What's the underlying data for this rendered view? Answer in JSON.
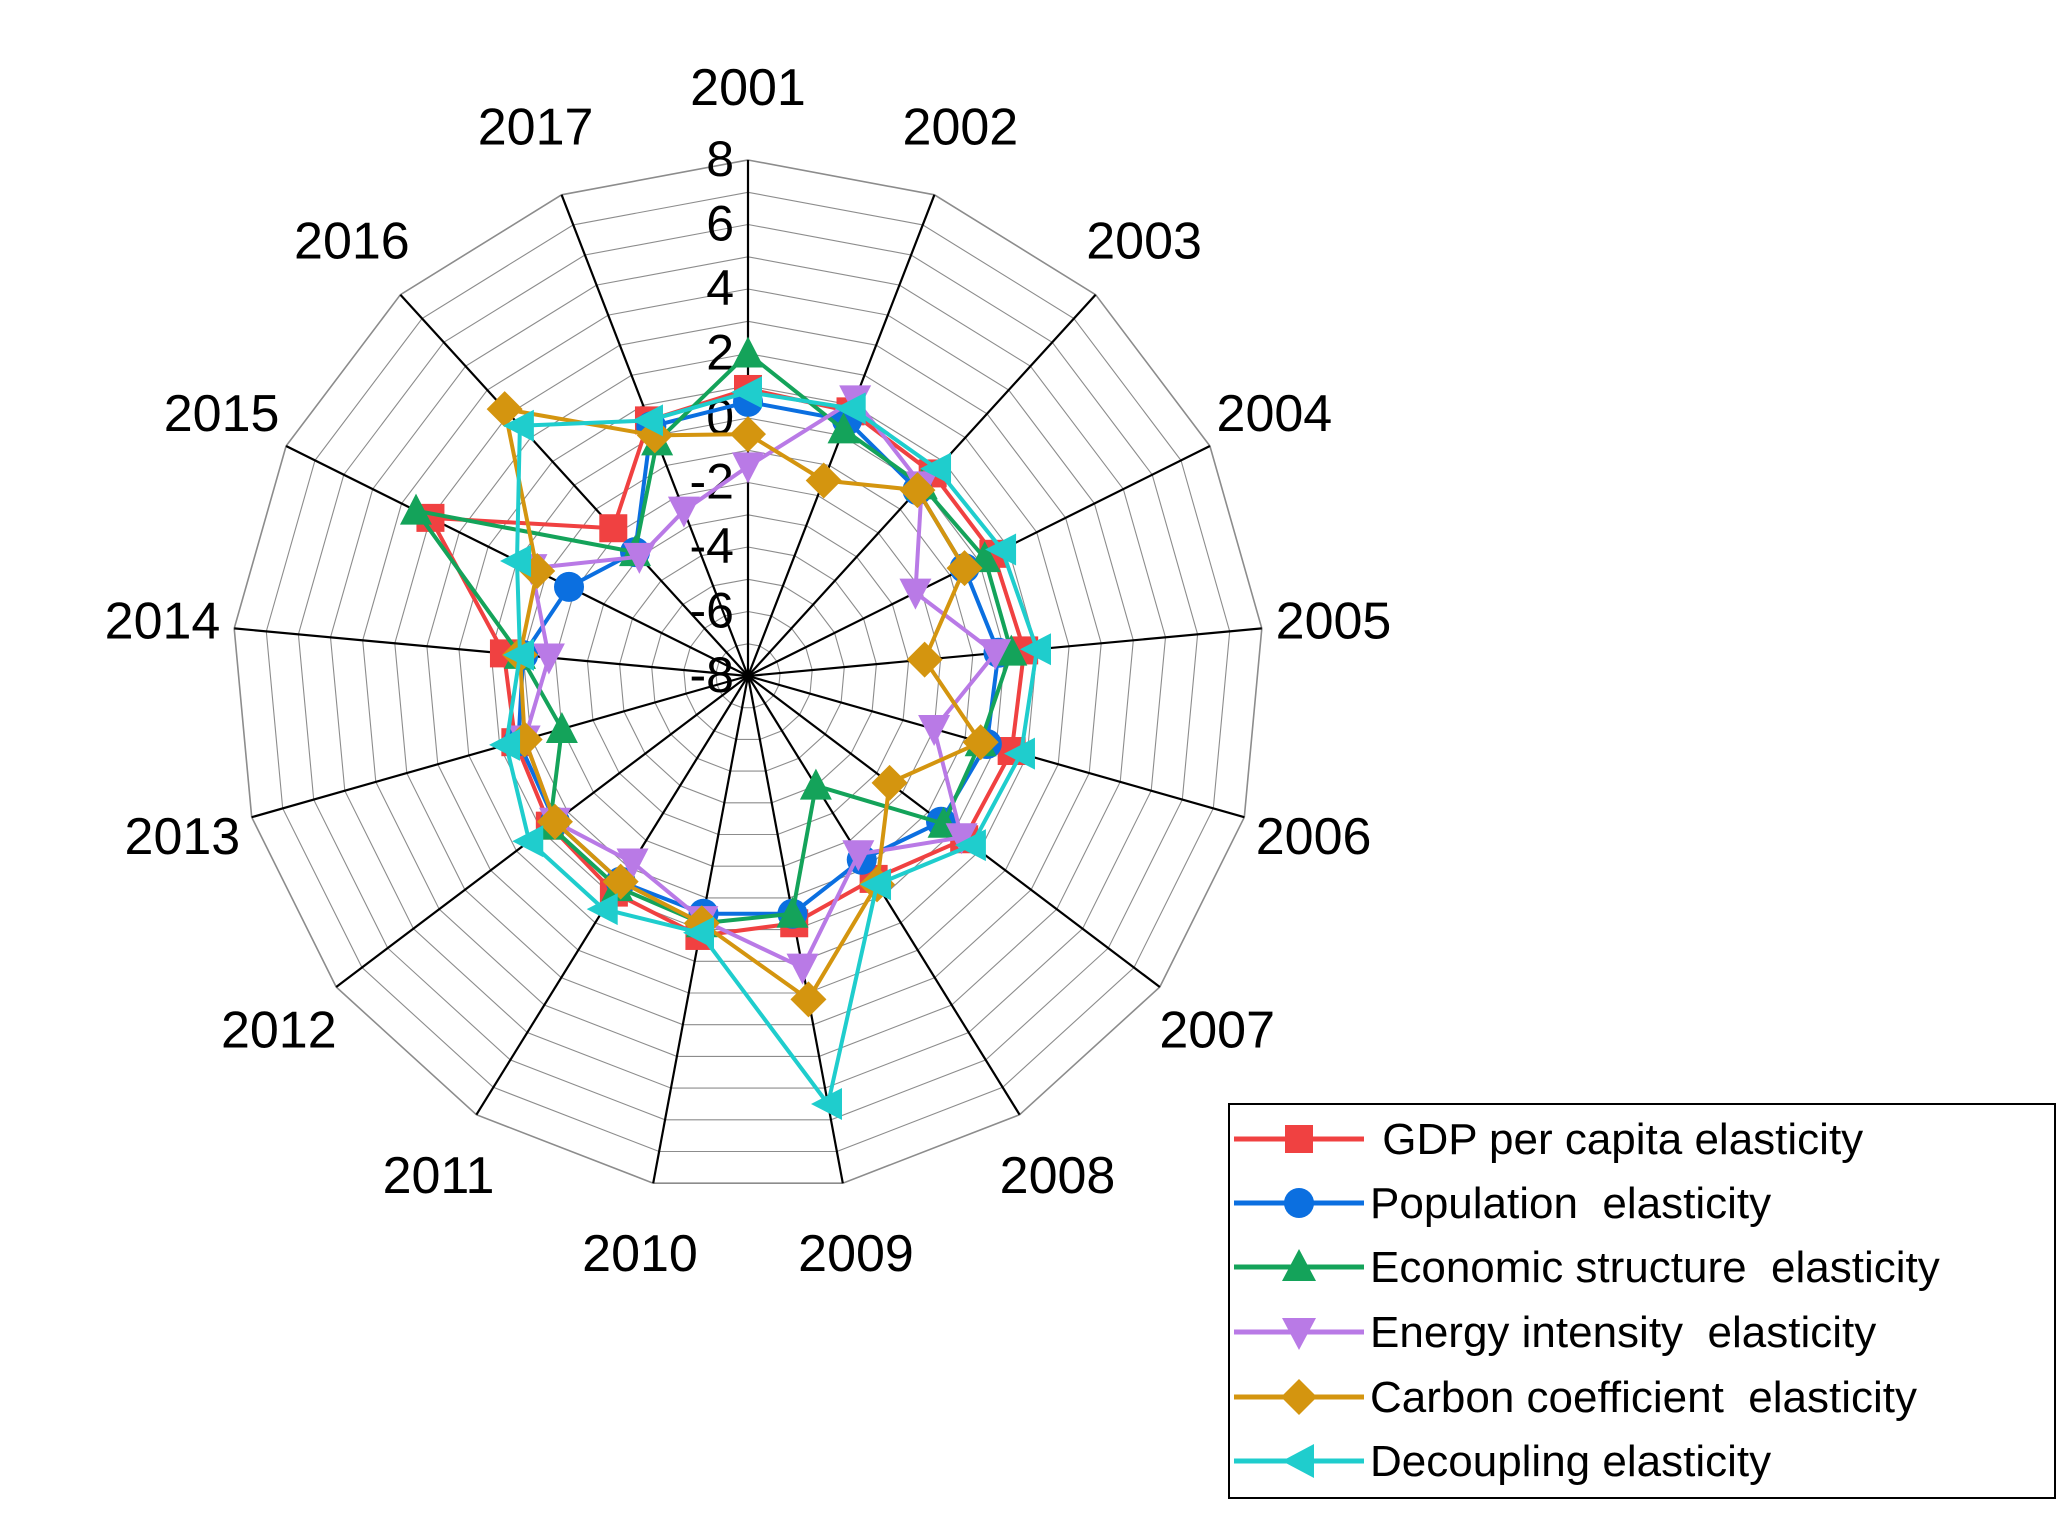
{
  "chart_data": {
    "type": "radar",
    "categories": [
      "2001",
      "2002",
      "2003",
      "2004",
      "2005",
      "2006",
      "2007",
      "2008",
      "2009",
      "2010",
      "2011",
      "2012",
      "2013",
      "2014",
      "2015",
      "2016",
      "2017"
    ],
    "ticks": [
      "-8",
      "-6",
      "-4",
      "-2",
      "0",
      "2",
      "4",
      "6",
      "8"
    ],
    "rlim": [
      -8,
      8
    ],
    "legend_position": "bottom-right",
    "series": [
      {
        "name": " GDP per capita elasticity",
        "color": "#f04141",
        "marker": "square",
        "values": [
          0.9,
          0.8,
          0.5,
          0.5,
          0.6,
          0.5,
          0.4,
          -0.6,
          -0.2,
          0.2,
          -0.1,
          -0.3,
          -0.5,
          -0.4,
          3.0,
          -1.8,
          0.5
        ]
      },
      {
        "name": "Population  elasticity",
        "color": "#0b6fe0",
        "marker": "circle",
        "values": 0,
        "values_list": [
          0.5,
          0.5,
          -0.2,
          -0.5,
          -0.2,
          -0.3,
          -0.5,
          -1.3,
          -0.5,
          -0.5,
          -0.5,
          -0.5,
          -0.6,
          -1.0,
          -1.8,
          -2.8,
          0.3
        ]
      }
    ]
  }
}
